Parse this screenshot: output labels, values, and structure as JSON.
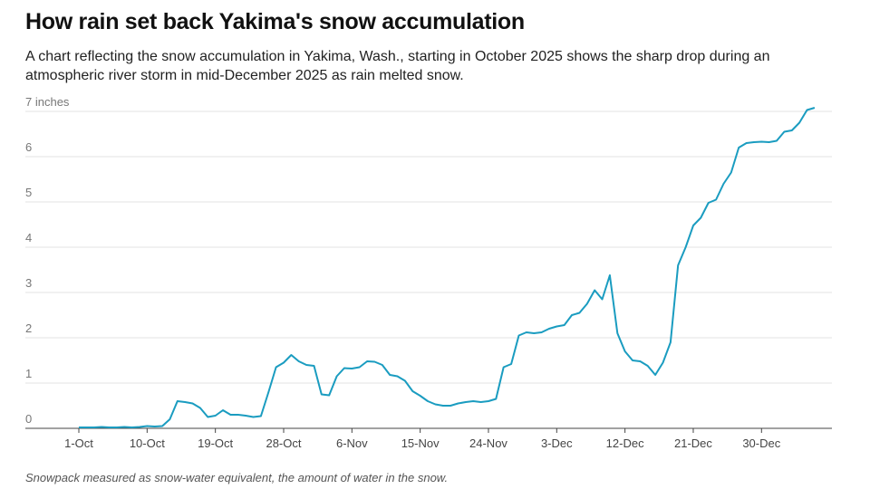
{
  "chart_data": {
    "type": "line",
    "title": "How rain set back Yakima's snow accumulation",
    "subtitle": "A chart reflecting the snow accumulation in Yakima, Wash., starting in October 2025 shows the sharp drop during an atmospheric river storm in mid-December 2025 as rain melted snow.",
    "note": "Snowpack measured as snow-water equivalent, the amount of water in the snow.",
    "categories": [
      "1-Oct",
      null,
      null,
      null,
      null,
      null,
      null,
      null,
      null,
      "10-Oct",
      null,
      null,
      null,
      null,
      null,
      null,
      null,
      null,
      "19-Oct",
      null,
      null,
      null,
      null,
      null,
      null,
      null,
      null,
      "28-Oct",
      null,
      null,
      null,
      null,
      null,
      null,
      null,
      null,
      "6-Nov",
      null,
      null,
      null,
      null,
      null,
      null,
      null,
      null,
      "15-Nov",
      null,
      null,
      null,
      null,
      null,
      null,
      null,
      null,
      "24-Nov",
      null,
      null,
      null,
      null,
      null,
      null,
      null,
      null,
      "3-Dec",
      null,
      null,
      null,
      null,
      null,
      null,
      null,
      null,
      "12-Dec",
      null,
      null,
      null,
      null,
      null,
      null,
      null,
      null,
      "21-Dec",
      null,
      null,
      null,
      null,
      null,
      null,
      null,
      null,
      "30-Dec",
      null,
      null,
      null,
      null,
      null,
      null,
      null
    ],
    "series": [
      {
        "name": "Snow accumulation",
        "color": "#1a9cc0",
        "values": [
          0.02,
          0.02,
          0.02,
          0.03,
          0.02,
          0.02,
          0.03,
          0.02,
          0.03,
          0.05,
          0.04,
          0.05,
          0.2,
          0.6,
          0.58,
          0.55,
          0.45,
          0.25,
          0.28,
          0.4,
          0.3,
          0.3,
          0.28,
          0.25,
          0.27,
          0.8,
          1.35,
          1.45,
          1.62,
          1.48,
          1.4,
          1.38,
          0.75,
          0.73,
          1.15,
          1.33,
          1.32,
          1.35,
          1.48,
          1.47,
          1.4,
          1.18,
          1.15,
          1.05,
          0.82,
          0.72,
          0.6,
          0.53,
          0.5,
          0.5,
          0.55,
          0.58,
          0.6,
          0.58,
          0.6,
          0.65,
          1.35,
          1.42,
          2.05,
          2.12,
          2.1,
          2.12,
          2.2,
          2.25,
          2.28,
          2.5,
          2.55,
          2.75,
          3.05,
          2.85,
          3.38,
          2.1,
          1.7,
          1.5,
          1.48,
          1.38,
          1.18,
          1.45,
          1.9,
          3.6,
          4.0,
          4.48,
          4.65,
          4.98,
          5.05,
          5.4,
          5.65,
          6.2,
          6.3,
          6.32,
          6.33,
          6.32,
          6.35,
          6.55,
          6.58,
          6.75,
          7.03,
          7.08
        ]
      }
    ],
    "ylim": [
      0,
      7.2
    ],
    "yticks": [
      0,
      1,
      2,
      3,
      4,
      5,
      6,
      {
        "value": 7,
        "label": "7 inches"
      }
    ],
    "grid": true
  }
}
